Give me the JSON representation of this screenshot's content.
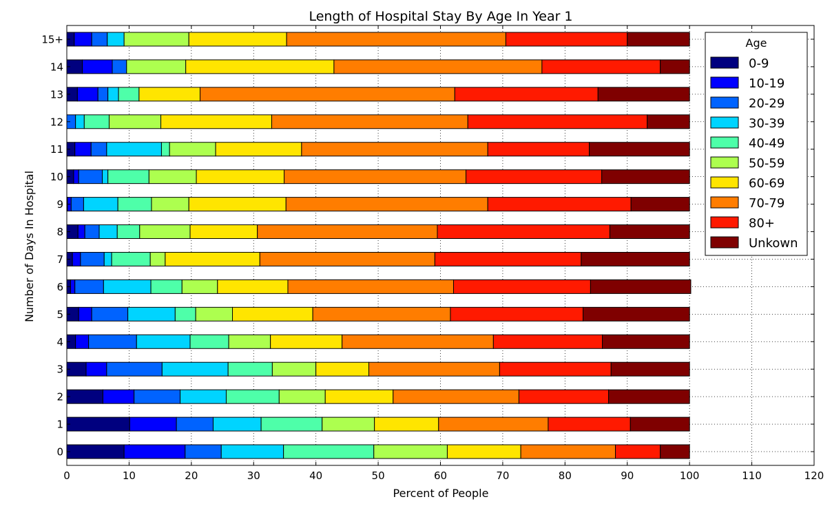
{
  "chart_data": {
    "type": "bar",
    "orientation": "horizontal",
    "stacked": true,
    "title": "Length of Hospital Stay By Age In Year 1",
    "xlabel": "Percent of People",
    "ylabel": "Number of Days In Hospital",
    "xlim": [
      0,
      120
    ],
    "xticks": [
      0,
      10,
      20,
      30,
      40,
      50,
      60,
      70,
      80,
      90,
      100,
      110,
      120
    ],
    "grid": true,
    "legend": {
      "title": "Age",
      "placement": "top-right"
    },
    "categories": [
      "0",
      "1",
      "2",
      "3",
      "4",
      "5",
      "6",
      "7",
      "8",
      "9",
      "10",
      "11",
      "12",
      "13",
      "14",
      "15+"
    ],
    "series": [
      {
        "name": "0-9",
        "color": "#00007f",
        "values": [
          9.2,
          10.1,
          5.8,
          3.1,
          1.4,
          1.9,
          0.6,
          0.9,
          1.8,
          0.1,
          1.1,
          1.3,
          0.0,
          1.7,
          2.5,
          1.2
        ]
      },
      {
        "name": "10-19",
        "color": "#0000ff",
        "values": [
          9.8,
          7.5,
          5.0,
          3.3,
          2.1,
          2.1,
          0.7,
          1.3,
          1.1,
          0.6,
          0.8,
          2.6,
          0.0,
          3.3,
          4.8,
          2.8
        ]
      },
      {
        "name": "20-29",
        "color": "#0063ff",
        "values": [
          5.8,
          5.9,
          7.4,
          8.9,
          7.7,
          5.8,
          4.6,
          3.8,
          2.3,
          2.0,
          3.8,
          2.5,
          1.4,
          1.6,
          2.3,
          2.5
        ]
      },
      {
        "name": "30-39",
        "color": "#00d4ff",
        "values": [
          10.0,
          7.7,
          7.4,
          10.6,
          8.6,
          7.6,
          7.6,
          1.2,
          2.9,
          5.5,
          0.9,
          8.8,
          1.4,
          1.7,
          0.0,
          2.7
        ]
      },
      {
        "name": "40-49",
        "color": "#4effa9",
        "values": [
          14.5,
          9.8,
          8.5,
          7.1,
          6.2,
          3.3,
          5.0,
          6.2,
          3.6,
          5.4,
          6.6,
          1.3,
          4.0,
          3.3,
          0.0,
          0.0
        ]
      },
      {
        "name": "50-59",
        "color": "#adff4f",
        "values": [
          11.8,
          8.4,
          7.4,
          7.0,
          6.7,
          5.9,
          5.7,
          2.4,
          8.1,
          6.0,
          7.6,
          7.4,
          8.3,
          0.0,
          9.5,
          10.4
        ]
      },
      {
        "name": "60-69",
        "color": "#ffe500",
        "values": [
          11.8,
          10.3,
          10.9,
          8.5,
          11.5,
          12.9,
          11.3,
          15.2,
          10.8,
          15.6,
          14.1,
          13.8,
          17.8,
          9.8,
          23.8,
          15.7
        ]
      },
      {
        "name": "70-79",
        "color": "#ff7d00",
        "values": [
          15.2,
          17.6,
          20.2,
          21.0,
          24.3,
          22.1,
          26.6,
          28.1,
          28.9,
          32.4,
          29.2,
          29.9,
          31.5,
          40.9,
          33.4,
          35.2
        ]
      },
      {
        "name": "80+",
        "color": "#ff1a00",
        "values": [
          7.2,
          13.2,
          14.4,
          17.9,
          17.5,
          21.3,
          22.0,
          23.5,
          27.7,
          23.0,
          21.8,
          16.3,
          28.8,
          23.0,
          19.0,
          19.5
        ]
      },
      {
        "name": "Unkown",
        "color": "#7f0000",
        "values": [
          4.7,
          9.5,
          13.0,
          12.6,
          14.0,
          17.1,
          16.1,
          17.4,
          12.8,
          9.4,
          14.1,
          16.1,
          6.8,
          14.7,
          4.7,
          10.0
        ]
      }
    ]
  }
}
